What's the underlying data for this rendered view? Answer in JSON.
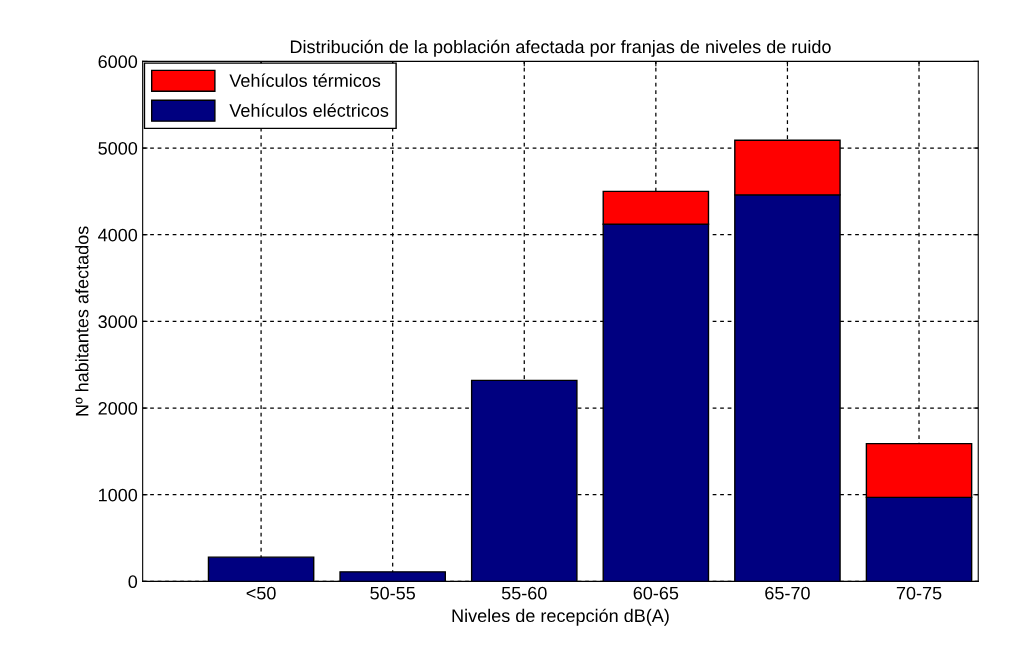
{
  "chart_data": {
    "type": "bar",
    "title": "Distribución de la población afectada por franjas de niveles de ruido",
    "xlabel": "Niveles de recepción dB(A)",
    "ylabel": "Nº habitantes afectados",
    "categories": [
      "<50",
      "50-55",
      "55-60",
      "60-65",
      "65-70",
      "70-75"
    ],
    "stacked": true,
    "series": [
      {
        "name": "Vehículos eléctricos",
        "color": "#000080",
        "values": [
          280,
          110,
          2320,
          4120,
          4460,
          970
        ]
      },
      {
        "name": "Vehículos térmicos",
        "color": "#ff0000",
        "values": [
          null,
          null,
          null,
          380,
          630,
          620
        ]
      }
    ],
    "ylim": [
      0,
      6000
    ],
    "yticks": [
      0,
      1000,
      2000,
      3000,
      4000,
      5000,
      6000
    ],
    "grid": true,
    "legend": "top left"
  }
}
